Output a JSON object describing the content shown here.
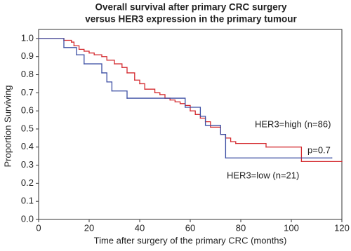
{
  "chart_data": {
    "type": "step",
    "title": [
      "Overall survival after primary CRC surgery",
      "versus HER3 expression in the primary tumour"
    ],
    "x_label": "Time after surgery of the primary CRC (months)",
    "y_label": "Proportion Surviving",
    "xlim": [
      0,
      120
    ],
    "ylim": [
      0,
      1.05
    ],
    "xticks": [
      0,
      20,
      40,
      60,
      80,
      100,
      120
    ],
    "yticks": [
      {
        "value": 0,
        "label": "0.0"
      },
      0.1,
      0.2,
      0.3,
      0.4,
      0.5,
      0.6,
      0.7,
      0.8,
      0.9,
      {
        "value": 1,
        "label": "1.0"
      }
    ],
    "grid": false,
    "series": [
      {
        "name": "HER3=high (n=86)",
        "color": "#d42a2f",
        "x": [
          0,
          10,
          13,
          14,
          16,
          18,
          20,
          22,
          25,
          27,
          30,
          33,
          35,
          38,
          40,
          42,
          46,
          48,
          50,
          52,
          54,
          56,
          58,
          60,
          62,
          64,
          66,
          68,
          72,
          74,
          76,
          78,
          90,
          104,
          120
        ],
        "values": [
          1,
          0.99,
          0.98,
          0.96,
          0.94,
          0.93,
          0.92,
          0.91,
          0.9,
          0.88,
          0.86,
          0.84,
          0.81,
          0.77,
          0.75,
          0.72,
          0.7,
          0.69,
          0.67,
          0.66,
          0.65,
          0.64,
          0.63,
          0.6,
          0.58,
          0.56,
          0.54,
          0.51,
          0.47,
          0.45,
          0.43,
          0.42,
          0.4,
          0.32,
          0.32
        ]
      },
      {
        "name": "HER3=low (n=21)",
        "color": "#3b4ea3",
        "x": [
          0,
          10,
          15,
          18,
          25,
          27,
          29,
          35,
          58,
          64,
          66,
          72,
          74,
          116
        ],
        "values": [
          1,
          0.95,
          0.91,
          0.86,
          0.81,
          0.76,
          0.71,
          0.67,
          0.62,
          0.57,
          0.52,
          0.47,
          0.34,
          0.34
        ]
      }
    ],
    "annotations": [
      "p=0.7"
    ]
  }
}
